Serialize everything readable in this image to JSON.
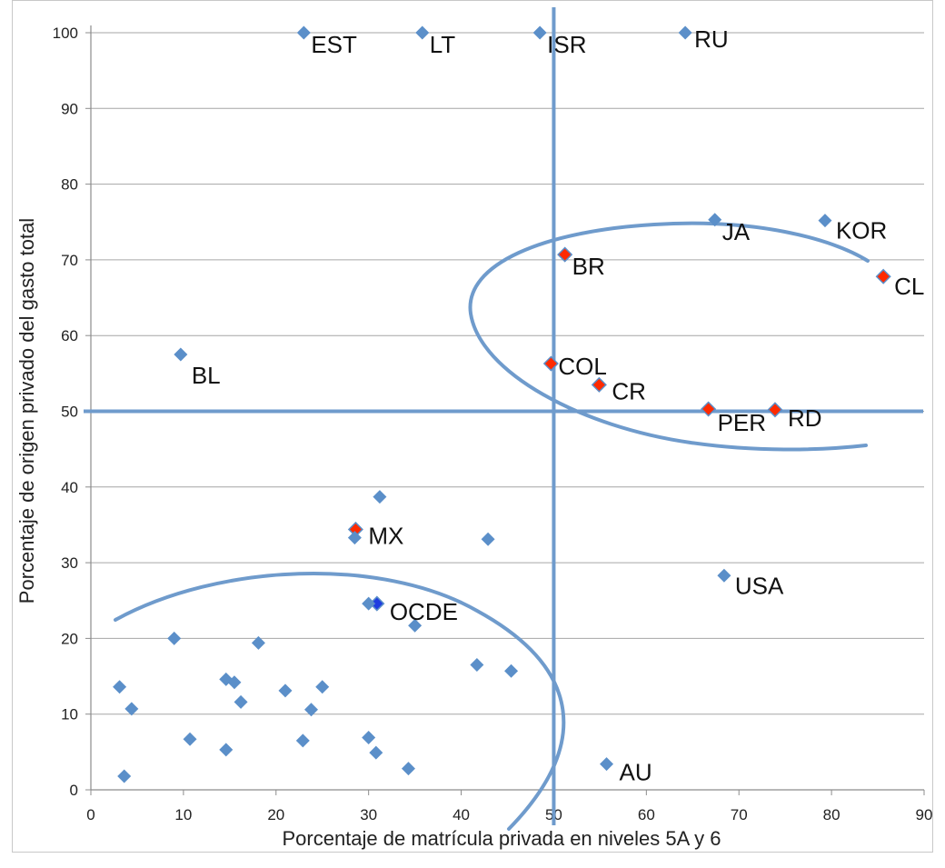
{
  "chart_data": {
    "type": "scatter",
    "xlabel": "Porcentaje de matrícula privada en niveles 5A y 6",
    "ylabel": "Porcentaje de origen privado del gasto total",
    "xlim": [
      0,
      90
    ],
    "ylim": [
      0,
      100
    ],
    "xticks": [
      "0",
      "10",
      "20",
      "30",
      "40",
      "50",
      "60",
      "70",
      "80",
      "90"
    ],
    "yticks": [
      "0",
      "10",
      "20",
      "30",
      "40",
      "50",
      "60",
      "70",
      "80",
      "90",
      "100"
    ],
    "grid": "horizontal",
    "reference_lines": {
      "x": 50,
      "y": 50
    },
    "colors": {
      "default": "#5b8fc9",
      "highlight": "#ff2a00",
      "ocde": "#1f3de0",
      "lines": "#6f9bcc",
      "grid": "#a6a6a6"
    },
    "points": [
      {
        "x": 23,
        "y": 100,
        "label": "EST",
        "color": "default"
      },
      {
        "x": 35.8,
        "y": 100,
        "label": "LT",
        "color": "default"
      },
      {
        "x": 48.5,
        "y": 100,
        "label": "ISR",
        "color": "default"
      },
      {
        "x": 64.2,
        "y": 100,
        "label": "RU",
        "color": "default"
      },
      {
        "x": 67.4,
        "y": 75.3,
        "label": "JA",
        "color": "default"
      },
      {
        "x": 79.3,
        "y": 75.2,
        "label": "KOR",
        "color": "default"
      },
      {
        "x": 51.2,
        "y": 70.7,
        "label": "BR",
        "color": "highlight"
      },
      {
        "x": 85.6,
        "y": 67.8,
        "label": "CL",
        "color": "highlight"
      },
      {
        "x": 9.7,
        "y": 57.5,
        "label": "BL",
        "color": "default"
      },
      {
        "x": 49.7,
        "y": 56.3,
        "label": "COL",
        "color": "highlight"
      },
      {
        "x": 54.9,
        "y": 53.5,
        "label": "CR",
        "color": "highlight"
      },
      {
        "x": 66.7,
        "y": 50.3,
        "label": "PER",
        "color": "highlight"
      },
      {
        "x": 73.9,
        "y": 50.2,
        "label": "RD",
        "color": "highlight"
      },
      {
        "x": 31.2,
        "y": 38.7,
        "label": "",
        "color": "default"
      },
      {
        "x": 28.6,
        "y": 34.4,
        "label": "MX",
        "color": "highlight"
      },
      {
        "x": 28.5,
        "y": 33.3,
        "label": "",
        "color": "default"
      },
      {
        "x": 42.9,
        "y": 33.1,
        "label": "",
        "color": "default"
      },
      {
        "x": 68.4,
        "y": 28.3,
        "label": "USA",
        "color": "default"
      },
      {
        "x": 30.9,
        "y": 24.6,
        "label": "OCDE",
        "color": "ocde"
      },
      {
        "x": 30.0,
        "y": 24.6,
        "label": "",
        "color": "default"
      },
      {
        "x": 35.0,
        "y": 21.7,
        "label": "",
        "color": "default"
      },
      {
        "x": 9.0,
        "y": 20.0,
        "label": "",
        "color": "default"
      },
      {
        "x": 18.1,
        "y": 19.4,
        "label": "",
        "color": "default"
      },
      {
        "x": 41.7,
        "y": 16.5,
        "label": "",
        "color": "default"
      },
      {
        "x": 45.4,
        "y": 15.7,
        "label": "",
        "color": "default"
      },
      {
        "x": 14.6,
        "y": 14.6,
        "label": "",
        "color": "default"
      },
      {
        "x": 15.5,
        "y": 14.2,
        "label": "",
        "color": "default"
      },
      {
        "x": 3.1,
        "y": 13.6,
        "label": "",
        "color": "default"
      },
      {
        "x": 25.0,
        "y": 13.6,
        "label": "",
        "color": "default"
      },
      {
        "x": 21.0,
        "y": 13.1,
        "label": "",
        "color": "default"
      },
      {
        "x": 16.2,
        "y": 11.6,
        "label": "",
        "color": "default"
      },
      {
        "x": 4.4,
        "y": 10.7,
        "label": "",
        "color": "default"
      },
      {
        "x": 23.8,
        "y": 10.6,
        "label": "",
        "color": "default"
      },
      {
        "x": 30.0,
        "y": 6.9,
        "label": "",
        "color": "default"
      },
      {
        "x": 10.7,
        "y": 6.7,
        "label": "",
        "color": "default"
      },
      {
        "x": 22.9,
        "y": 6.5,
        "label": "",
        "color": "default"
      },
      {
        "x": 14.6,
        "y": 5.3,
        "label": "",
        "color": "default"
      },
      {
        "x": 30.8,
        "y": 4.9,
        "label": "",
        "color": "default"
      },
      {
        "x": 55.7,
        "y": 3.4,
        "label": "AU",
        "color": "default"
      },
      {
        "x": 34.3,
        "y": 2.8,
        "label": "",
        "color": "default"
      },
      {
        "x": 3.6,
        "y": 1.8,
        "label": "",
        "color": "default"
      }
    ]
  }
}
